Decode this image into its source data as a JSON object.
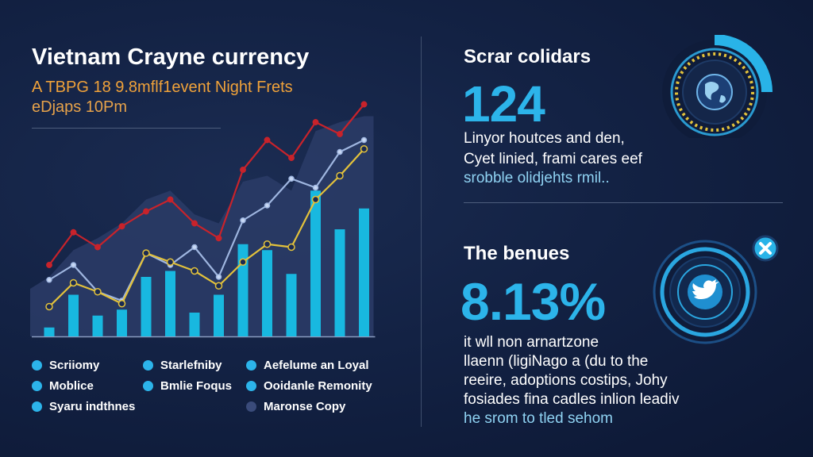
{
  "header": {
    "title": "Vietnam Crayne currency",
    "subtitle_line1": "A TBPG 18 9.8mflf1event Night Frets",
    "subtitle_line2": "eDjaps 10Pm"
  },
  "colors": {
    "accent": "#2cb4ea",
    "bar": "#18b8e0",
    "red_line": "#c8232b",
    "yellow_line": "#e3c23b",
    "pale_line": "#9fb6e0",
    "area": "#2a3b66",
    "orange_text": "#f0a23a"
  },
  "chart_data": {
    "type": "bar",
    "bars": [
      3,
      14,
      7,
      9,
      20,
      22,
      8,
      14,
      31,
      29,
      21,
      49,
      36,
      43
    ],
    "overlays": {
      "area_top": [
        20,
        29,
        33,
        38,
        46,
        49,
        41,
        38,
        52,
        54,
        49,
        69,
        72,
        74
      ],
      "red_line": [
        24,
        35,
        30,
        37,
        42,
        46,
        38,
        33,
        56,
        66,
        60,
        72,
        68,
        78
      ],
      "pale_line": [
        19,
        24,
        15,
        12,
        28,
        24,
        30,
        20,
        39,
        44,
        53,
        50,
        62,
        66
      ],
      "yellow_line": [
        10,
        18,
        15,
        11,
        28,
        25,
        22,
        17,
        25,
        31,
        30,
        46,
        54,
        63
      ]
    },
    "ylim": [
      0,
      80
    ],
    "grid": false
  },
  "legend": [
    {
      "label": "Scriiomy",
      "color": "#2cb4ea"
    },
    {
      "label": "Starlefniby",
      "color": "#2cb4ea"
    },
    {
      "label": "Aefelume an Loyal",
      "color": "#2cb4ea"
    },
    {
      "label": "Moblice",
      "color": "#2cb4ea"
    },
    {
      "label": "Bmlie Foqus",
      "color": "#2cb4ea"
    },
    {
      "label": "Ooidanle Remonity",
      "color": "#2cb4ea"
    },
    {
      "label": "Syaru indthnes",
      "color": "#2cb4ea"
    },
    {
      "label": "Maronse Copy",
      "color": "#3a4b7a"
    }
  ],
  "stat1": {
    "heading": "Scrar colidars",
    "value": "124",
    "lines": [
      "Linyor houtces and den,",
      "Cyet linied, frami cares eef",
      "srobble olidjehts rmil.."
    ],
    "icon": "globe-icon"
  },
  "stat2": {
    "heading": "The benues",
    "value": "8.13%",
    "lines": [
      "it wll non arnartzone",
      "llaenn (ligiNago a (du to the",
      "reeire, adoptions costips, Johy",
      "fosiades fina cadles inlion leadiv",
      "he srom to tled sehom"
    ],
    "icon": "bird-icon",
    "badge_icon": "close-icon"
  }
}
